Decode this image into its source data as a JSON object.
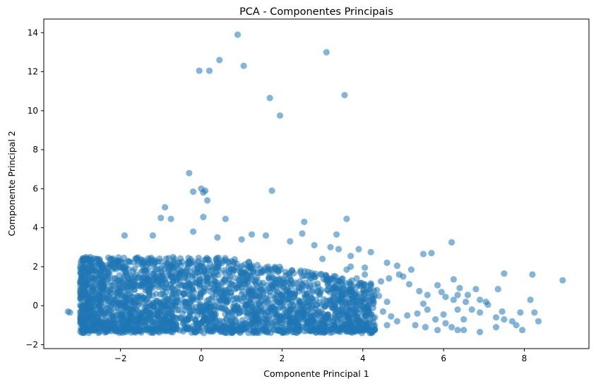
{
  "chart_data": {
    "type": "scatter",
    "title": "PCA - Componentes Principais",
    "xlabel": "Componente Principal 1",
    "ylabel": "Componente Principal 2",
    "xlim": [
      -3.9,
      9.6
    ],
    "ylim": [
      -2.2,
      14.7
    ],
    "xticks": [
      -2,
      0,
      2,
      4,
      6,
      8
    ],
    "yticks": [
      -2,
      0,
      2,
      4,
      6,
      8,
      10,
      12,
      14
    ],
    "xtick_labels": [
      "−2",
      "0",
      "2",
      "4",
      "6",
      "8"
    ],
    "ytick_labels": [
      "−2",
      "0",
      "2",
      "4",
      "6",
      "8",
      "10",
      "12",
      "14"
    ],
    "grid": false,
    "legend": "none",
    "point_color": "#1f77b4",
    "point_alpha": 0.55,
    "cluster": {
      "description_points": 2600,
      "x_range": [
        -3.0,
        4.3
      ],
      "y_range": [
        -1.4,
        2.5
      ]
    },
    "points": [
      [
        0.9,
        13.9
      ],
      [
        3.1,
        13.0
      ],
      [
        0.45,
        12.6
      ],
      [
        -0.05,
        12.05
      ],
      [
        0.2,
        12.05
      ],
      [
        1.05,
        12.3
      ],
      [
        3.55,
        10.8
      ],
      [
        1.7,
        10.65
      ],
      [
        1.95,
        9.75
      ],
      [
        -0.3,
        6.8
      ],
      [
        -0.2,
        5.85
      ],
      [
        0.0,
        6.0
      ],
      [
        0.1,
        5.9
      ],
      [
        0.05,
        5.8
      ],
      [
        0.15,
        5.4
      ],
      [
        1.75,
        5.9
      ],
      [
        -0.9,
        5.05
      ],
      [
        -1.0,
        4.5
      ],
      [
        -0.75,
        4.45
      ],
      [
        0.05,
        4.55
      ],
      [
        0.6,
        4.45
      ],
      [
        2.55,
        4.3
      ],
      [
        3.6,
        4.45
      ],
      [
        -1.9,
        3.6
      ],
      [
        -1.2,
        3.6
      ],
      [
        -0.2,
        3.8
      ],
      [
        0.4,
        3.5
      ],
      [
        1.25,
        3.65
      ],
      [
        1.6,
        3.6
      ],
      [
        2.5,
        3.7
      ],
      [
        3.35,
        3.65
      ],
      [
        1.0,
        3.4
      ],
      [
        2.2,
        3.3
      ],
      [
        2.8,
        3.1
      ],
      [
        3.2,
        3.0
      ],
      [
        3.4,
        2.9
      ],
      [
        3.9,
        2.9
      ],
      [
        4.2,
        2.75
      ],
      [
        3.7,
        2.55
      ],
      [
        3.0,
        2.4
      ],
      [
        4.6,
        2.2
      ],
      [
        4.85,
        2.05
      ],
      [
        4.9,
        1.6
      ],
      [
        5.0,
        1.5
      ],
      [
        5.2,
        1.85
      ],
      [
        5.5,
        2.65
      ],
      [
        5.7,
        2.7
      ],
      [
        6.2,
        3.25
      ],
      [
        6.25,
        1.35
      ],
      [
        5.15,
        1.1
      ],
      [
        5.4,
        0.75
      ],
      [
        5.6,
        0.55
      ],
      [
        5.85,
        1.05
      ],
      [
        5.95,
        0.7
      ],
      [
        6.05,
        0.45
      ],
      [
        6.4,
        0.9
      ],
      [
        6.6,
        0.55
      ],
      [
        6.8,
        0.85
      ],
      [
        6.9,
        0.3
      ],
      [
        6.35,
        0.55
      ],
      [
        6.25,
        0.3
      ],
      [
        6.55,
        0.2
      ],
      [
        7.05,
        0.2
      ],
      [
        7.35,
        0.85
      ],
      [
        7.5,
        1.65
      ],
      [
        8.2,
        1.6
      ],
      [
        8.15,
        0.3
      ],
      [
        8.25,
        -0.35
      ],
      [
        8.35,
        -0.8
      ],
      [
        7.9,
        -0.35
      ],
      [
        7.7,
        -0.8
      ],
      [
        7.5,
        -0.7
      ],
      [
        7.3,
        -0.6
      ],
      [
        7.3,
        -1.1
      ],
      [
        7.8,
        -1.0
      ],
      [
        7.95,
        -1.25
      ],
      [
        8.95,
        1.3
      ],
      [
        6.9,
        -1.35
      ],
      [
        6.5,
        -0.7
      ],
      [
        6.35,
        -0.2
      ],
      [
        6.0,
        -0.45
      ],
      [
        5.8,
        -0.7
      ],
      [
        6.2,
        -1.1
      ],
      [
        6.35,
        -1.25
      ],
      [
        6.5,
        -1.25
      ],
      [
        5.6,
        -0.2
      ],
      [
        5.5,
        0.1
      ],
      [
        5.35,
        -0.4
      ],
      [
        5.1,
        -0.5
      ],
      [
        4.85,
        -0.8
      ],
      [
        4.6,
        -1.0
      ],
      [
        4.7,
        -0.55
      ],
      [
        4.5,
        -0.3
      ],
      [
        4.6,
        0.2
      ],
      [
        4.4,
        0.5
      ],
      [
        4.35,
        0.8
      ],
      [
        4.2,
        1.05
      ],
      [
        4.45,
        1.25
      ],
      [
        4.65,
        1.4
      ],
      [
        5.3,
        -1.0
      ],
      [
        5.55,
        -1.1
      ],
      [
        5.85,
        -1.25
      ],
      [
        6.05,
        -0.9
      ],
      [
        6.7,
        -0.2
      ],
      [
        6.9,
        -0.35
      ],
      [
        7.45,
        -0.3
      ],
      [
        7.1,
        0.05
      ],
      [
        4.1,
        -0.9
      ],
      [
        4.3,
        -1.2
      ],
      [
        3.9,
        -1.3
      ],
      [
        4.0,
        0.3
      ],
      [
        4.15,
        0.05
      ],
      [
        4.3,
        -0.6
      ],
      [
        3.95,
        1.15
      ],
      [
        4.05,
        1.6
      ],
      [
        4.05,
        1.95
      ],
      [
        3.7,
        2.0
      ],
      [
        3.85,
        1.4
      ],
      [
        3.6,
        1.85
      ],
      [
        3.5,
        1.1
      ],
      [
        -3.25,
        -0.35
      ],
      [
        -3.3,
        -0.3
      ],
      [
        -2.5,
        -1.3
      ],
      [
        -2.55,
        2.35
      ],
      [
        -2.1,
        2.3
      ],
      [
        -2.65,
        0.7
      ],
      [
        -2.8,
        0.25
      ],
      [
        -2.95,
        -0.45
      ],
      [
        -2.35,
        1.5
      ],
      [
        -1.95,
        1.95
      ]
    ]
  }
}
